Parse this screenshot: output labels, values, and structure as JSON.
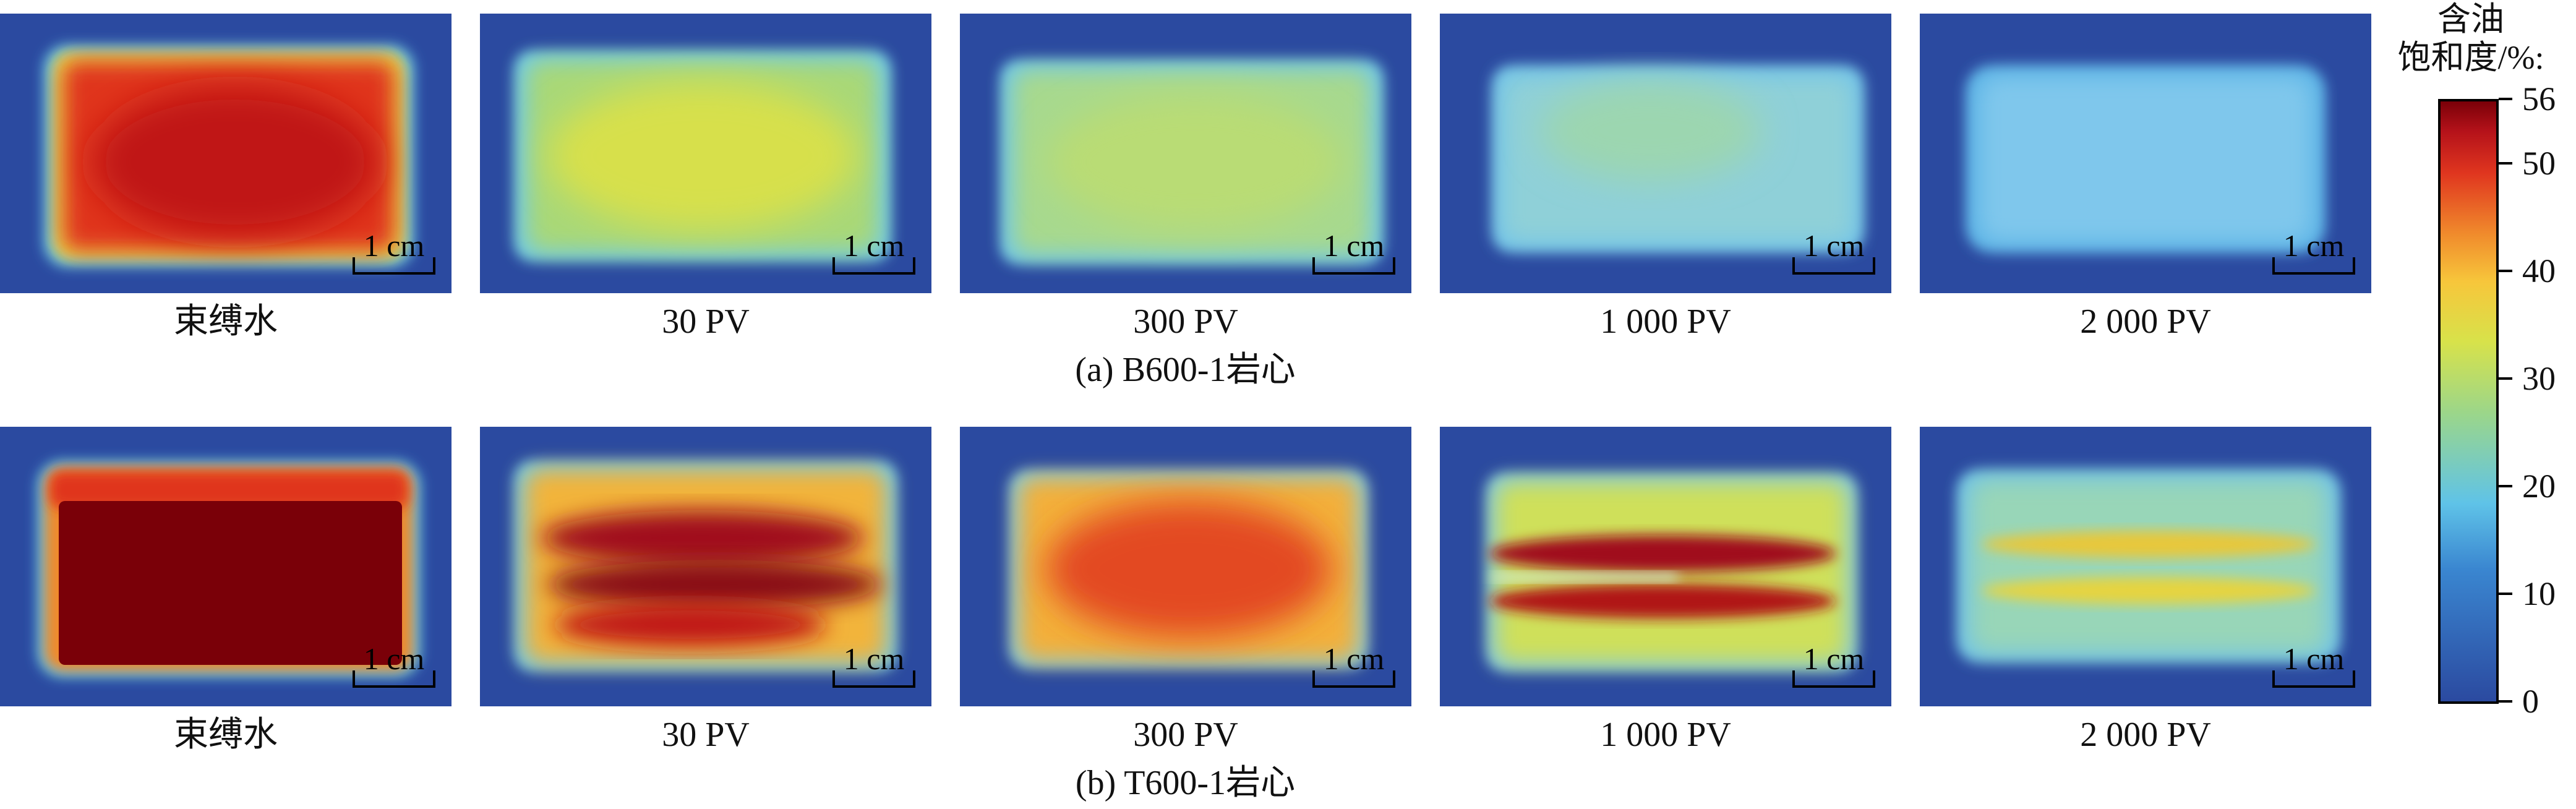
{
  "rows": [
    {
      "caption": "(a) B600-1岩心",
      "images": [
        {
          "label": "束缚水",
          "scale_label": "1 cm"
        },
        {
          "label": "30 PV",
          "scale_label": "1 cm"
        },
        {
          "label": "300 PV",
          "scale_label": "1 cm"
        },
        {
          "label": "1 000 PV",
          "scale_label": "1 cm"
        },
        {
          "label": "2 000 PV",
          "scale_label": "1 cm"
        }
      ]
    },
    {
      "caption": "(b) T600-1岩心",
      "images": [
        {
          "label": "束缚水",
          "scale_label": "1 cm"
        },
        {
          "label": "30 PV",
          "scale_label": "1 cm"
        },
        {
          "label": "300 PV",
          "scale_label": "1 cm"
        },
        {
          "label": "1 000 PV",
          "scale_label": "1 cm"
        },
        {
          "label": "2 000 PV",
          "scale_label": "1 cm"
        }
      ]
    }
  ],
  "colorbar": {
    "title_line1": "含油",
    "title_line2": "饱和度/%:",
    "ticks": [
      "56",
      "50",
      "40",
      "30",
      "20",
      "10",
      "0"
    ],
    "min": 0,
    "max": 56
  },
  "colors": {
    "background": "#2b4aa0",
    "deep_red": "#7a0008",
    "red": "#d0201a",
    "orange": "#f08a2c",
    "yellow": "#e6e24a",
    "green": "#9bd68a",
    "light_blue": "#8ccbe8"
  }
}
